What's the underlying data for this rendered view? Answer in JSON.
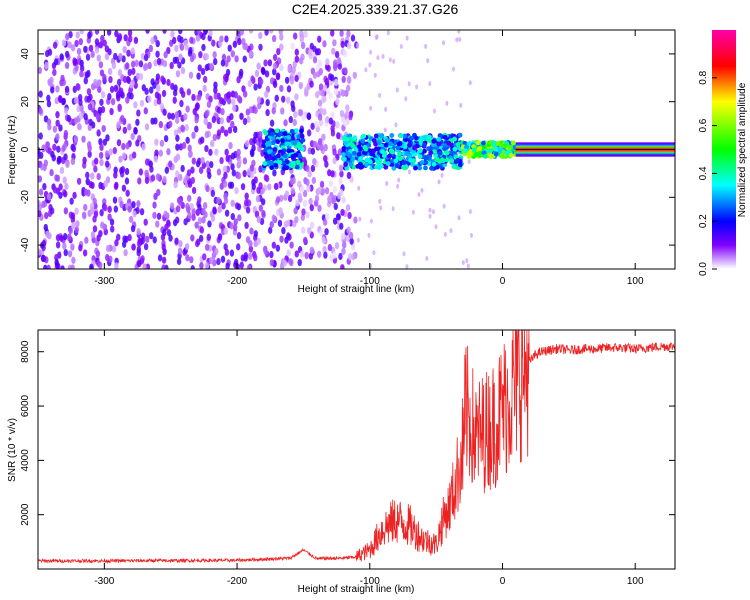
{
  "title": "C2E4.2025.339.21.37.G26",
  "chart_data": [
    {
      "type": "heatmap",
      "xlabel": "Height of straight line (km)",
      "ylabel": "Frequency (Hz)",
      "xlim": [
        -350,
        130
      ],
      "ylim": [
        -50,
        50
      ],
      "xticks": [
        -300,
        -200,
        -100,
        0,
        100
      ],
      "yticks": [
        -40,
        -20,
        0,
        20,
        40
      ],
      "colorbar": {
        "label": "Normalized spectral amplitude",
        "range": [
          0,
          1
        ],
        "ticks": [
          0.0,
          0.2,
          0.4,
          0.6,
          0.8
        ],
        "colormap": [
          "#ffffff",
          "#8000ff",
          "#0000ff",
          "#00ffff",
          "#00ff00",
          "#ffff00",
          "#ff0000",
          "#ff00aa"
        ]
      },
      "regions": [
        {
          "x_range": [
            -350,
            -110
          ],
          "freq_range": [
            -50,
            50
          ],
          "amplitude": 0.15,
          "note": "noise"
        },
        {
          "x_range": [
            -180,
            -150
          ],
          "freq_range": [
            -8,
            8
          ],
          "amplitude": 0.35
        },
        {
          "x_range": [
            -120,
            -30
          ],
          "freq_range": [
            -8,
            6
          ],
          "amplitude": 0.35
        },
        {
          "x_range": [
            -30,
            10
          ],
          "freq_range": [
            -3,
            3
          ],
          "amplitude": 0.6
        },
        {
          "x_range": [
            10,
            130
          ],
          "freq_range": [
            -1,
            1
          ],
          "amplitude": 1.0
        }
      ]
    },
    {
      "type": "line",
      "xlabel": "Height of straight line (km)",
      "ylabel": "SNR (10 * v/v)",
      "xlim": [
        -350,
        130
      ],
      "ylim": [
        0,
        8800
      ],
      "xticks": [
        -300,
        -200,
        -100,
        0,
        100
      ],
      "yticks": [
        2000,
        4000,
        6000,
        8000
      ],
      "line_color": "#ee2222",
      "series": [
        {
          "x": [
            -350,
            -300,
            -250,
            -200,
            -160,
            -150,
            -140,
            -120,
            -110,
            -100,
            -90,
            -80,
            -70,
            -60,
            -50,
            -45,
            -40,
            -35,
            -30,
            -28,
            -25,
            -20,
            -15,
            -10,
            -5,
            0,
            5,
            10,
            15,
            20,
            25,
            30,
            35,
            40,
            45,
            50,
            60,
            70,
            80,
            90,
            100,
            110,
            120,
            130
          ],
          "y": [
            300,
            300,
            310,
            320,
            400,
            700,
            380,
            400,
            450,
            700,
            1500,
            1800,
            1600,
            1100,
            900,
            1800,
            2300,
            3200,
            4500,
            5800,
            5600,
            4800,
            5000,
            5200,
            5400,
            5900,
            6300,
            6800,
            7200,
            7600,
            7900,
            8000,
            8050,
            8100,
            8100,
            8050,
            8100,
            8100,
            8150,
            8150,
            8100,
            8150,
            8200,
            8200
          ]
        }
      ]
    }
  ]
}
